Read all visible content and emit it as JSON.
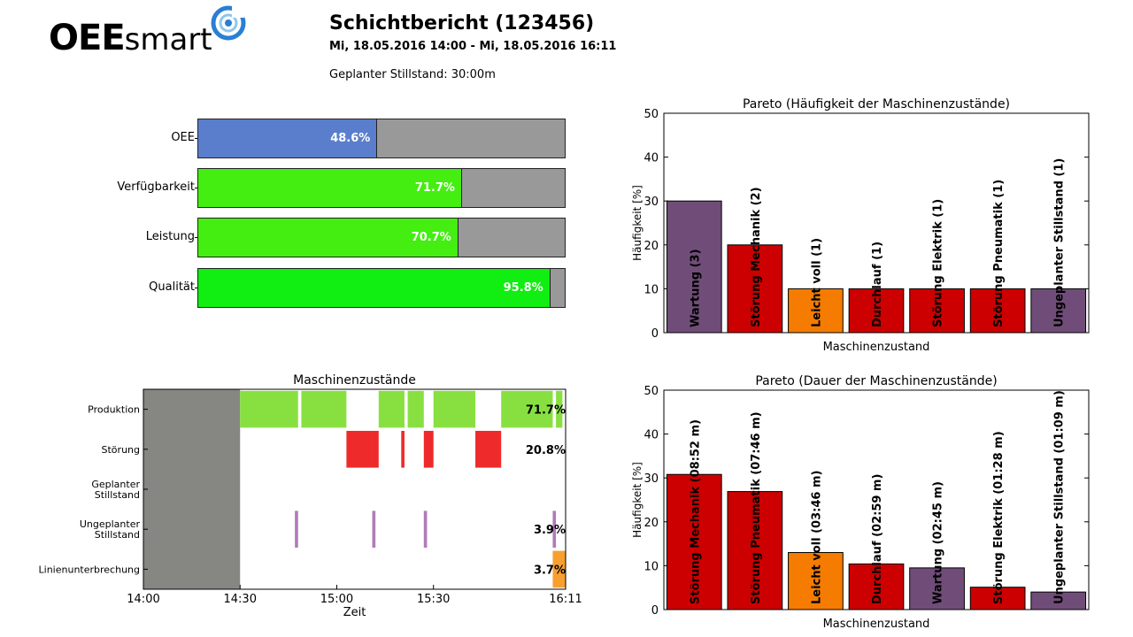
{
  "header": {
    "logo_bold": "OEE",
    "logo_light": "smart",
    "title": "Schichtbericht (123456)",
    "period": "Mi, 18.05.2016 14:00 - Mi, 18.05.2016 16:11",
    "planned_downtime": "Geplanter Stillstand: 30:00m"
  },
  "kpis": [
    {
      "label": "OEE",
      "value": 48.6,
      "text": "48.6%",
      "color": "#5a7ecb"
    },
    {
      "label": "Verfügbarkeit",
      "value": 71.7,
      "text": "71.7%",
      "color": "#44ee11"
    },
    {
      "label": "Leistung",
      "value": 70.7,
      "text": "70.7%",
      "color": "#44ee11"
    },
    {
      "label": "Qualität",
      "value": 95.8,
      "text": "95.8%",
      "color": "#11ee11"
    }
  ],
  "colors": {
    "purple": "#704d78",
    "red": "#cc0000",
    "orange": "#f57c00",
    "grid": "#000000"
  },
  "chart_data": [
    {
      "type": "bar",
      "title": "Pareto (Häufigkeit der Maschinenzustände)",
      "xlabel": "Maschinenzustand",
      "ylabel": "Häufigkeit [%]",
      "ylim": [
        0,
        50
      ],
      "yticks": [
        "0",
        "10",
        "20",
        "30",
        "40",
        "50"
      ],
      "categories": [
        "Wartung (3)",
        "Störung Mechanik (2)",
        "Leicht voll (1)",
        "Durchlauf (1)",
        "Störung Elektrik (1)",
        "Störung Pneumatik (1)",
        "Ungeplanter Stillstand (1)"
      ],
      "values": [
        30,
        20,
        10,
        10,
        10,
        10,
        10
      ],
      "bar_colors": [
        "purple",
        "red",
        "orange",
        "red",
        "red",
        "red",
        "purple"
      ]
    },
    {
      "type": "bar",
      "title": "Pareto (Dauer der Maschinenzustände)",
      "xlabel": "Maschinenzustand",
      "ylabel": "Häufigkeit [%]",
      "ylim": [
        0,
        50
      ],
      "yticks": [
        "0",
        "10",
        "20",
        "30",
        "40",
        "50"
      ],
      "categories": [
        "Störung Mechanik (08:52 m)",
        "Störung Pneumatik (07:46 m)",
        "Leicht voll (03:46 m)",
        "Durchlauf (02:59 m)",
        "Wartung (02:45 m)",
        "Störung Elektrik (01:28 m)",
        "Ungeplanter Stillstand (01:09 m)"
      ],
      "values": [
        30.8,
        26.9,
        13.0,
        10.4,
        9.5,
        5.1,
        4.0
      ],
      "bar_colors": [
        "red",
        "red",
        "orange",
        "red",
        "purple",
        "red",
        "purple"
      ]
    },
    {
      "type": "timeline",
      "title": "Maschinenzustände",
      "xlabel": "Zeit",
      "x_range": [
        "14:00",
        "16:11"
      ],
      "xticks": [
        "14:00",
        "14:30",
        "15:00",
        "15:30",
        "16:11"
      ],
      "inactive_interval": [
        "14:00",
        "14:30"
      ],
      "rows": [
        {
          "label": [
            "Produktion"
          ],
          "pct": "71.7%",
          "color": "#88e040",
          "intervals": [
            [
              "14:30",
              "14:48"
            ],
            [
              "14:49",
              "15:03"
            ],
            [
              "15:13",
              "15:21"
            ],
            [
              "15:22",
              "15:27"
            ],
            [
              "15:30",
              "15:43"
            ],
            [
              "15:51",
              "16:07"
            ],
            [
              "16:08",
              "16:10"
            ]
          ]
        },
        {
          "label": [
            "Störung"
          ],
          "pct": "20.8%",
          "color": "#ee2a2a",
          "intervals": [
            [
              "15:03",
              "15:11"
            ],
            [
              "15:11",
              "15:13"
            ],
            [
              "15:20",
              "15:21"
            ],
            [
              "15:27",
              "15:30"
            ],
            [
              "15:43",
              "15:51"
            ]
          ]
        },
        {
          "label": [
            "Geplanter",
            "Stillstand"
          ],
          "pct": "",
          "color": "#ee2a2a",
          "intervals": []
        },
        {
          "label": [
            "Ungeplanter",
            "Stillstand"
          ],
          "pct": "3.9%",
          "color": "#b07cb8",
          "intervals": [
            [
              "14:47",
              "14:48"
            ],
            [
              "15:11",
              "15:12"
            ],
            [
              "15:27",
              "15:28"
            ],
            [
              "16:07",
              "16:08"
            ]
          ]
        },
        {
          "label": [
            "Linienunterbrechung"
          ],
          "pct": "3.7%",
          "color": "#f7a030",
          "intervals": [
            [
              "16:07",
              "16:11"
            ]
          ]
        }
      ]
    }
  ]
}
